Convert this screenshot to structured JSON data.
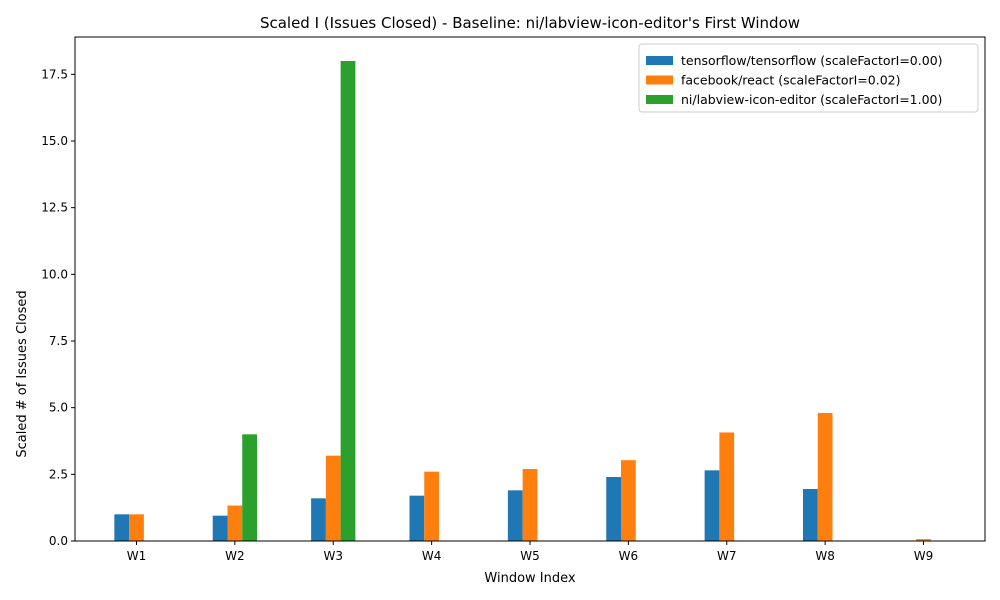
{
  "chart_data": {
    "type": "bar",
    "title": "Scaled I (Issues Closed) - Baseline: ni/labview-icon-editor's First Window",
    "xlabel": "Window Index",
    "ylabel": "Scaled # of Issues Closed",
    "categories": [
      "W1",
      "W2",
      "W3",
      "W4",
      "W5",
      "W6",
      "W7",
      "W8",
      "W9"
    ],
    "ylim": [
      0,
      18.9
    ],
    "yticks": [
      0.0,
      2.5,
      5.0,
      7.5,
      10.0,
      12.5,
      15.0,
      17.5
    ],
    "ytick_labels": [
      "0.0",
      "2.5",
      "5.0",
      "7.5",
      "10.0",
      "12.5",
      "15.0",
      "17.5"
    ],
    "grid": false,
    "legend_position": "top-right",
    "series": [
      {
        "name": "tensorflow/tensorflow (scaleFactorI=0.00)",
        "color": "#1f77b4",
        "values": [
          1.0,
          0.95,
          1.6,
          1.7,
          1.9,
          2.4,
          2.65,
          1.95,
          0
        ]
      },
      {
        "name": "facebook/react (scaleFactorI=0.02)",
        "color": "#ff7f0e",
        "values": [
          1.0,
          1.33,
          3.2,
          2.6,
          2.7,
          3.03,
          4.07,
          4.8,
          0.07
        ]
      },
      {
        "name": "ni/labview-icon-editor (scaleFactorI=1.00)",
        "color": "#2ca02c",
        "values": [
          0,
          4.0,
          18.0,
          0,
          0,
          0,
          0,
          0,
          0
        ]
      }
    ]
  }
}
